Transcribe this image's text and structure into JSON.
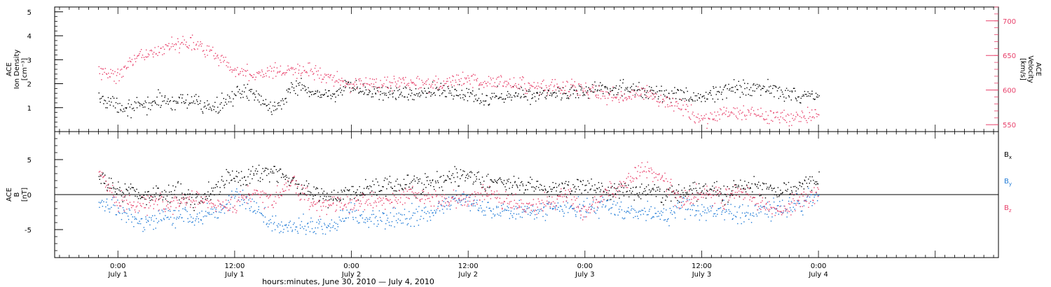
{
  "footer_label": "hours:minutes, June 30, 2010 — July  4, 2010",
  "chart_data": [
    {
      "type": "scatter",
      "panel": "ion-density-velocity",
      "ylabel_lines": [
        "ACE",
        "Ion Density",
        "[cm⁻³]"
      ],
      "ylim": [
        0,
        5.2
      ],
      "yticks": [
        1,
        2,
        3,
        4,
        5
      ],
      "y2label_lines": [
        "ACE",
        "Velocity",
        "[km/s]"
      ],
      "y2lim": [
        540,
        720
      ],
      "y2ticks": [
        550,
        600,
        650,
        700
      ],
      "x_hours_range": [
        -6.5,
        90.5
      ],
      "x_tick_hours": [
        0,
        12,
        24,
        36,
        48,
        60,
        72
      ],
      "x_tick_labels": [
        [
          "0:00",
          "July 1"
        ],
        [
          "12:00",
          "July 1"
        ],
        [
          "0:00",
          "July 2"
        ],
        [
          "12:00",
          "July 2"
        ],
        [
          "0:00",
          "July 3"
        ],
        [
          "12:00",
          "July 3"
        ],
        [
          "0:00",
          "July 4"
        ]
      ],
      "series": [
        {
          "color": "#000000",
          "axis": "left",
          "x_hours": [
            -2,
            0,
            2,
            4,
            6,
            8,
            10,
            12,
            14,
            16,
            18,
            20,
            22,
            24,
            26,
            28,
            30,
            32,
            34,
            36,
            38,
            40,
            42,
            44,
            46,
            48,
            50,
            52,
            54,
            56,
            58,
            60,
            62,
            64,
            66,
            68,
            70,
            72
          ],
          "values": [
            1.4,
            1.1,
            1.0,
            1.3,
            1.3,
            1.2,
            1.0,
            1.6,
            1.6,
            1.0,
            1.9,
            1.6,
            1.6,
            1.8,
            1.7,
            1.6,
            1.6,
            1.7,
            1.7,
            1.6,
            1.4,
            1.5,
            1.6,
            1.6,
            1.7,
            1.7,
            1.8,
            1.8,
            1.7,
            1.6,
            1.5,
            1.4,
            1.7,
            1.9,
            1.8,
            1.7,
            1.5,
            1.6
          ]
        },
        {
          "color": "#e8416b",
          "axis": "right",
          "x_hours": [
            -2,
            0,
            2,
            4,
            6,
            8,
            10,
            12,
            14,
            16,
            18,
            20,
            22,
            24,
            26,
            28,
            30,
            32,
            34,
            36,
            38,
            40,
            42,
            44,
            46,
            48,
            50,
            52,
            54,
            56,
            58,
            60,
            62,
            64,
            66,
            68,
            70,
            72
          ],
          "values": [
            625,
            622,
            648,
            656,
            668,
            668,
            653,
            628,
            623,
            628,
            629,
            627,
            618,
            607,
            612,
            610,
            613,
            609,
            614,
            616,
            613,
            610,
            607,
            604,
            606,
            602,
            592,
            592,
            596,
            587,
            575,
            558,
            567,
            568,
            564,
            560,
            560,
            570
          ]
        }
      ]
    },
    {
      "type": "scatter",
      "panel": "imf-b",
      "ylabel_lines": [
        "ACE",
        "B",
        "[nT]"
      ],
      "ylim": [
        -9,
        9
      ],
      "yticks": [
        -5,
        0,
        5
      ],
      "zero_line": true,
      "x_hours_range": [
        -6.5,
        90.5
      ],
      "x_tick_hours": [
        0,
        12,
        24,
        36,
        48,
        60,
        72
      ],
      "series": [
        {
          "label": "B",
          "label_sub": "x",
          "color": "#000000",
          "x_hours": [
            -2,
            0,
            2,
            4,
            6,
            8,
            10,
            12,
            14,
            16,
            18,
            20,
            22,
            24,
            26,
            28,
            30,
            32,
            34,
            36,
            38,
            40,
            42,
            44,
            46,
            48,
            50,
            52,
            54,
            56,
            58,
            60,
            62,
            64,
            66,
            68,
            70,
            72
          ],
          "values": [
            2.0,
            1.0,
            0.2,
            0.0,
            0.3,
            -0.6,
            0.8,
            2.8,
            3.0,
            3.6,
            1.6,
            0.5,
            -0.4,
            0.4,
            0.8,
            1.3,
            1.6,
            1.3,
            2.4,
            2.8,
            1.6,
            1.7,
            1.2,
            1.0,
            0.7,
            1.3,
            0.6,
            0.8,
            0.6,
            0.2,
            0.4,
            0.8,
            0.4,
            1.0,
            1.3,
            0.2,
            1.2,
            2.1
          ]
        },
        {
          "label": "B",
          "label_sub": "y",
          "color": "#1f7ad6",
          "x_hours": [
            -2,
            0,
            2,
            4,
            6,
            8,
            10,
            12,
            14,
            16,
            18,
            20,
            22,
            24,
            26,
            28,
            30,
            32,
            34,
            36,
            38,
            40,
            42,
            44,
            46,
            48,
            50,
            52,
            54,
            56,
            58,
            60,
            62,
            64,
            66,
            68,
            70,
            72
          ],
          "values": [
            -0.6,
            -2.2,
            -3.8,
            -3.6,
            -3.0,
            -3.2,
            -2.6,
            0.0,
            -1.8,
            -4.2,
            -4.4,
            -4.6,
            -4.4,
            -2.6,
            -3.5,
            -3.5,
            -3.0,
            -2.6,
            -0.6,
            -1.0,
            -2.0,
            -2.4,
            -2.2,
            -2.3,
            -2.0,
            -2.2,
            -1.3,
            -2.6,
            -2.4,
            -3.2,
            -1.8,
            -2.4,
            -2.4,
            -2.6,
            -2.5,
            -1.8,
            -1.4,
            0.4
          ]
        },
        {
          "label": "B",
          "label_sub": "z",
          "color": "#e8416b",
          "x_hours": [
            -2,
            0,
            2,
            4,
            6,
            8,
            10,
            12,
            14,
            16,
            18,
            20,
            22,
            24,
            26,
            28,
            30,
            32,
            34,
            36,
            38,
            40,
            42,
            44,
            46,
            48,
            50,
            52,
            54,
            56,
            58,
            60,
            62,
            64,
            66,
            68,
            70,
            72
          ],
          "values": [
            3.5,
            -0.8,
            -1.6,
            -1.0,
            -1.6,
            -0.2,
            -1.4,
            -1.2,
            0.2,
            -1.0,
            1.6,
            -1.6,
            -1.2,
            -1.6,
            -0.5,
            -0.8,
            0.4,
            -0.4,
            -0.8,
            -0.6,
            0.6,
            -1.0,
            -1.5,
            -1.0,
            0.0,
            -2.4,
            0.5,
            1.2,
            4.0,
            2.0,
            -1.0,
            0.5,
            -0.6,
            0.7,
            -1.2,
            -2.4,
            -0.5,
            0.2
          ]
        }
      ]
    }
  ]
}
